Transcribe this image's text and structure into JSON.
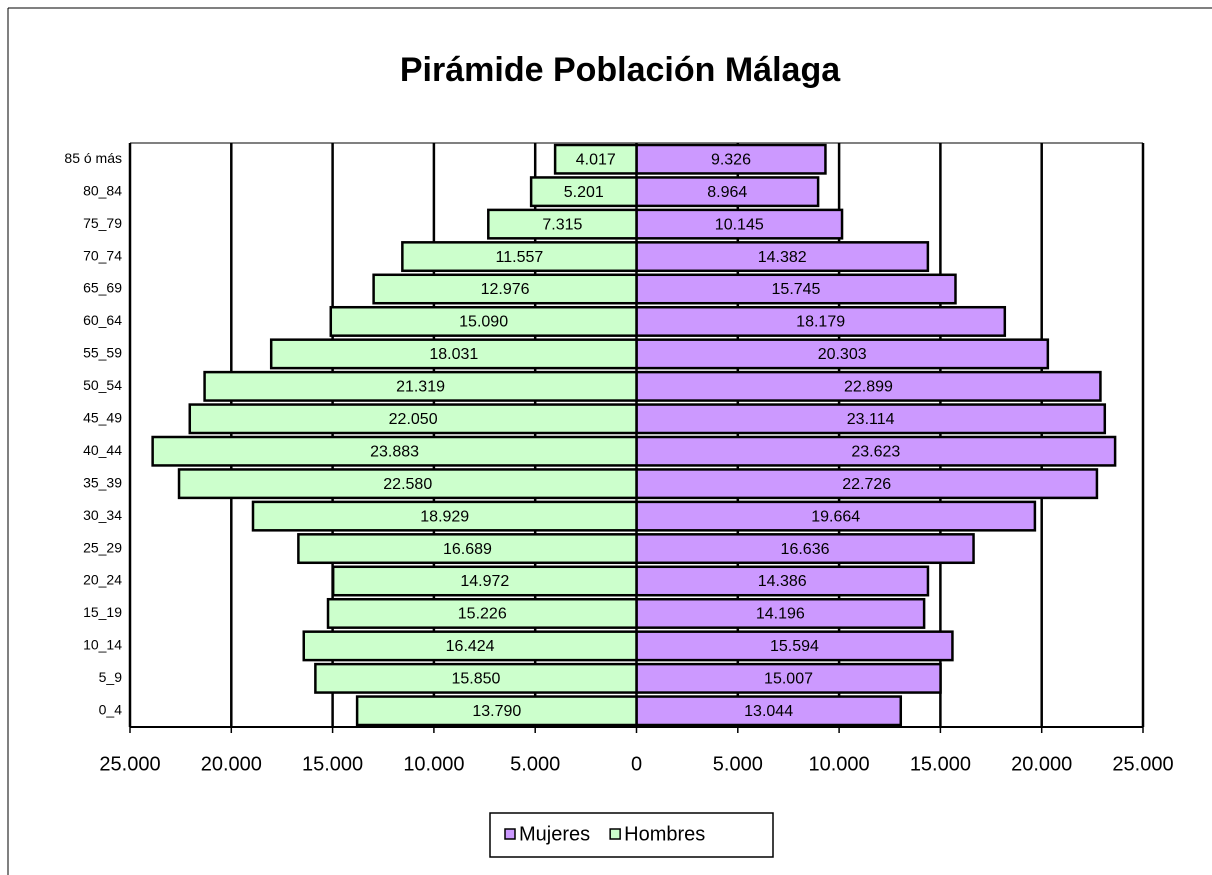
{
  "chart_data": {
    "type": "pyramid",
    "title": "Pirámide Población Málaga",
    "categories": [
      "0_4",
      "5_9",
      "10_14",
      "15_19",
      "20_24",
      "25_29",
      "30_34",
      "35_39",
      "40_44",
      "45_49",
      "50_54",
      "55_59",
      "60_64",
      "65_69",
      "70_74",
      "75_79",
      "80_84",
      "85 ó más"
    ],
    "series": [
      {
        "name": "Mujeres",
        "color": "#cc99ff",
        "side": "right",
        "values": [
          13044,
          15007,
          15594,
          14196,
          14386,
          16636,
          19664,
          22726,
          23623,
          23114,
          22899,
          20303,
          18179,
          15745,
          14382,
          10145,
          8964,
          9326
        ],
        "value_labels": [
          "13.044",
          "15.007",
          "15.594",
          "14.196",
          "14.386",
          "16.636",
          "19.664",
          "22.726",
          "23.623",
          "23.114",
          "22.899",
          "20.303",
          "18.179",
          "15.745",
          "14.382",
          "10.145",
          "8.964",
          "9.326"
        ]
      },
      {
        "name": "Hombres",
        "color": "#ccffcc",
        "side": "left",
        "values": [
          13790,
          15850,
          16424,
          15226,
          14972,
          16689,
          18929,
          22580,
          23883,
          22050,
          21319,
          18031,
          15090,
          12976,
          11557,
          7315,
          5201,
          4017
        ],
        "value_labels": [
          "13.790",
          "15.850",
          "16.424",
          "15.226",
          "14.972",
          "16.689",
          "18.929",
          "22.580",
          "23.883",
          "22.050",
          "21.319",
          "18.031",
          "15.090",
          "12.976",
          "11.557",
          "7.315",
          "5.201",
          "4.017"
        ]
      }
    ],
    "xlim": [
      -25000,
      25000
    ],
    "xticks": [
      {
        "value": -25000,
        "label": "25.000"
      },
      {
        "value": -20000,
        "label": "20.000"
      },
      {
        "value": -15000,
        "label": "15.000"
      },
      {
        "value": -10000,
        "label": "10.000"
      },
      {
        "value": -5000,
        "label": "5.000"
      },
      0,
      {
        "value": 5000,
        "label": "5.000"
      },
      {
        "value": 10000,
        "label": "10.000"
      },
      {
        "value": 15000,
        "label": "15.000"
      },
      {
        "value": 20000,
        "label": "20.000"
      },
      {
        "value": 25000,
        "label": "25.000"
      }
    ],
    "grid": true,
    "legend": "bottom"
  }
}
